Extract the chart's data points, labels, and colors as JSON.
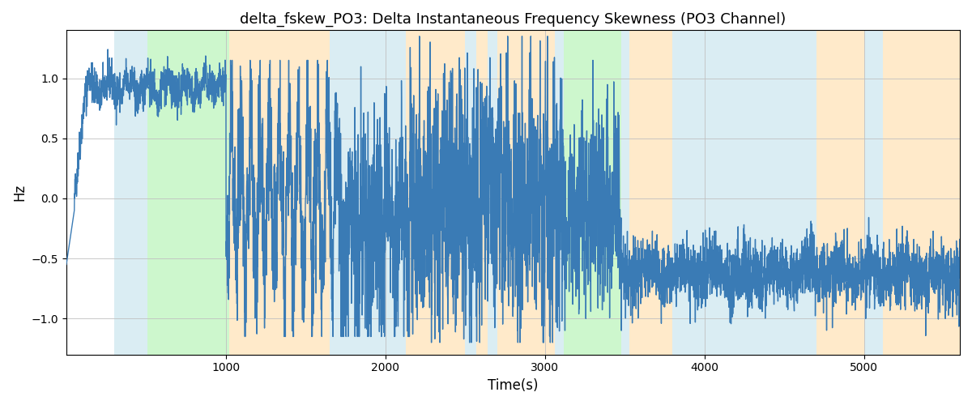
{
  "title": "delta_fskew_PO3: Delta Instantaneous Frequency Skewness (PO3 Channel)",
  "xlabel": "Time(s)",
  "ylabel": "Hz",
  "line_color": "#3a7bb5",
  "line_width": 1.0,
  "background_color": "#ffffff",
  "grid_color": "#c0c0c0",
  "xlim": [
    0,
    5600
  ],
  "ylim": [
    -1.3,
    1.4
  ],
  "yticks": [
    -1.0,
    -0.5,
    0.0,
    0.5,
    1.0
  ],
  "seed": 42,
  "regions": [
    {
      "start": 300,
      "end": 510,
      "color": "#add8e6",
      "alpha": 0.45
    },
    {
      "start": 510,
      "end": 1020,
      "color": "#90ee90",
      "alpha": 0.45
    },
    {
      "start": 1020,
      "end": 1650,
      "color": "#ffd9a0",
      "alpha": 0.55
    },
    {
      "start": 1650,
      "end": 1870,
      "color": "#add8e6",
      "alpha": 0.45
    },
    {
      "start": 1870,
      "end": 2130,
      "color": "#add8e6",
      "alpha": 0.45
    },
    {
      "start": 2130,
      "end": 2500,
      "color": "#ffd9a0",
      "alpha": 0.55
    },
    {
      "start": 2500,
      "end": 2570,
      "color": "#add8e6",
      "alpha": 0.45
    },
    {
      "start": 2570,
      "end": 2640,
      "color": "#ffd9a0",
      "alpha": 0.55
    },
    {
      "start": 2640,
      "end": 2700,
      "color": "#add8e6",
      "alpha": 0.45
    },
    {
      "start": 2700,
      "end": 3060,
      "color": "#ffd9a0",
      "alpha": 0.55
    },
    {
      "start": 3060,
      "end": 3120,
      "color": "#add8e6",
      "alpha": 0.45
    },
    {
      "start": 3120,
      "end": 3480,
      "color": "#90ee90",
      "alpha": 0.45
    },
    {
      "start": 3480,
      "end": 3530,
      "color": "#add8e6",
      "alpha": 0.45
    },
    {
      "start": 3530,
      "end": 3800,
      "color": "#ffd9a0",
      "alpha": 0.55
    },
    {
      "start": 3800,
      "end": 4700,
      "color": "#add8e6",
      "alpha": 0.45
    },
    {
      "start": 4700,
      "end": 5000,
      "color": "#ffd9a0",
      "alpha": 0.55
    },
    {
      "start": 5000,
      "end": 5120,
      "color": "#add8e6",
      "alpha": 0.45
    },
    {
      "start": 5120,
      "end": 5600,
      "color": "#ffd9a0",
      "alpha": 0.55
    }
  ]
}
